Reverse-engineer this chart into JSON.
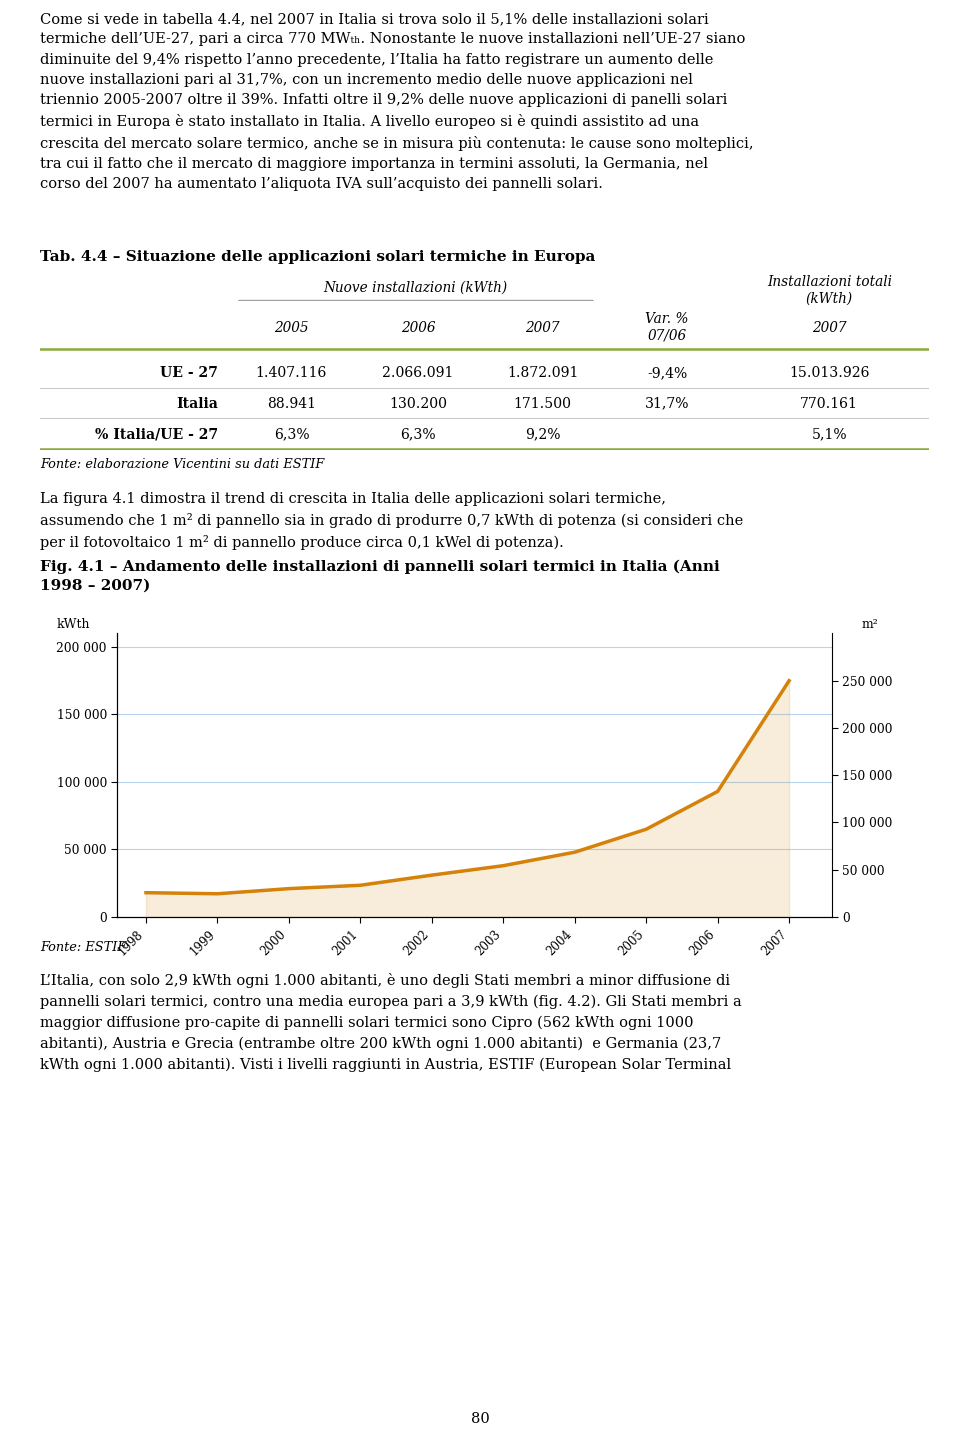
{
  "page_bg": "#ffffff",
  "p1_lines": [
    "Come si vede in tabella 4.4, nel 2007 in Italia si trova solo il 5,1% delle installazioni solari",
    "termiche dell’UE-27, pari a circa 770 MWₜₕ. Nonostante le nuove installazioni nell’UE-27 siano",
    "diminuite del 9,4% rispetto l’anno precedente, l’Italia ha fatto registrare un aumento delle",
    "nuove installazioni pari al 31,7%, con un incremento medio delle nuove applicazioni nel",
    "triennio 2005-2007 oltre il 39%. Infatti oltre il 9,2% delle nuove applicazioni di panelli solari",
    "termici in Europa è stato installato in Italia. A livello europeo si è quindi assistito ad una",
    "crescita del mercato solare termico, anche se in misura più contenuta: le cause sono molteplici,",
    "tra cui il fatto che il mercato di maggiore importanza in termini assoluti, la Germania, nel",
    "corso del 2007 ha aumentato l’aliquota IVA sull’acquisto dei pannelli solari."
  ],
  "tab_title": "Tab. 4.4 – Situazione delle applicazioni solari termiche in Europa",
  "tab_header_nuove": "Nuove installazioni (kWth)",
  "tab_header_totali": "Installazioni totali\n(kWth)",
  "col_sub_headers": [
    "2005",
    "2006",
    "2007",
    "Var. %\n07/06",
    "2007"
  ],
  "row_labels": [
    "UE - 27",
    "Italia",
    "% Italia/UE - 27"
  ],
  "table_data": [
    [
      "1.407.116",
      "2.066.091",
      "1.872.091",
      "-9,4%",
      "15.013.926"
    ],
    [
      "88.941",
      "130.200",
      "171.500",
      "31,7%",
      "770.161"
    ],
    [
      "6,3%",
      "6,3%",
      "9,2%",
      "",
      "5,1%"
    ]
  ],
  "fonte_table": "Fonte: elaborazione Vicentini su dati ESTIF",
  "p2_lines": [
    "La figura 4.1 dimostra il trend di crescita in Italia delle applicazioni solari termiche,",
    "assumendo che 1 m² di pannello sia in grado di produrre 0,7 kWth di potenza (si consideri che",
    "per il fotovoltaico 1 m² di pannello produce circa 0,1 kWel di potenza)."
  ],
  "chart_title_lines": [
    "Fig. 4.1 – Andamento delle installazioni di pannelli solari termici in Italia (Anni",
    "1998 – 2007)"
  ],
  "years": [
    1998,
    1999,
    2000,
    2001,
    2002,
    2003,
    2004,
    2005,
    2006,
    2007
  ],
  "kwth_values": [
    18000,
    17200,
    21000,
    23500,
    31000,
    38000,
    48000,
    65000,
    93000,
    175000
  ],
  "line_color": "#D4820A",
  "chart_border_color": "#6aaa3a",
  "grid_color": "#b8d4f0",
  "grid_linewidth": 0.8,
  "left_yticks": [
    0,
    50000,
    100000,
    150000,
    200000
  ],
  "left_yticklabels": [
    "0",
    "50 000",
    "100 000",
    "150 000",
    "200 000"
  ],
  "right_yticks": [
    0,
    50000,
    100000,
    150000,
    200000,
    250000
  ],
  "right_yticklabels": [
    "0",
    "50 000",
    "100 000",
    "150 000",
    "200 000",
    "250 000"
  ],
  "fonte_chart": "Fonte: ESTIF",
  "p3_lines": [
    "L’Italia, con solo 2,9 kWth ogni 1.000 abitanti, è uno degli Stati membri a minor diffusione di",
    "pannelli solari termici, contro una media europea pari a 3,9 kWth (fig. 4.2). Gli Stati membri a",
    "maggior diffusione pro-capite di pannelli solari termici sono Cipro (562 kWth ogni 1000",
    "abitanti), Austria e Grecia (entrambe oltre 200 kWth ogni 1.000 abitanti)  e Germania (23,7",
    "kWth ogni 1.000 abitanti). Visti i livelli raggiunti in Austria, ESTIF (European Solar Terminal"
  ],
  "page_number": "80",
  "green_line_color": "#8aaa3a",
  "sep_line_color": "#bbbbbb"
}
